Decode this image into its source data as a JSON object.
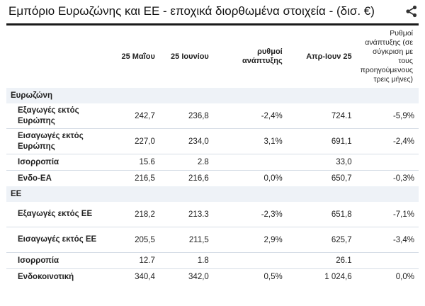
{
  "title": "Εμπόριο Ευρωζώνης και ΕΕ - εποχικά διορθωμένα στοιχεία - (δισ. €)",
  "icons": {
    "share": "share-icon"
  },
  "columns": [
    "",
    "25 Μαΐου",
    "25 Ιουνίου",
    "ρυθμοί ανάπτυξης",
    "Απρ-Ιουν 25",
    "Ρυθμοί ανάπτυξης (σε σύγκριση με τους προηγούμενους τρεις μήνες)"
  ],
  "sections": [
    {
      "name": "Ευρωζώνη",
      "rows": [
        {
          "label": "Εξαγωγές εκτός Ευρώπης",
          "v": [
            "242,7",
            "236,8",
            "-2,4%",
            "724.1",
            "-5,9%"
          ]
        },
        {
          "label": "Εισαγωγές εκτός Ευρώπης",
          "v": [
            "227,0",
            "234,0",
            "3,1%",
            "691,1",
            "-2,4%"
          ]
        },
        {
          "label": "Ισορροπία",
          "v": [
            "15.6",
            "2.8",
            "",
            "33,0",
            ""
          ]
        },
        {
          "label": "Ενδο-ΕΑ",
          "v": [
            "216,5",
            "216,6",
            "0,0%",
            "650,7",
            "-0,3%"
          ]
        }
      ]
    },
    {
      "name": "ΕΕ",
      "rows": [
        {
          "label": "Εξαγωγές εκτός ΕΕ",
          "v": [
            "218,2",
            "213.3",
            "-2,3%",
            "651,8",
            "-7,1%"
          ]
        },
        {
          "label": "Εισαγωγές εκτός ΕΕ",
          "v": [
            "205,5",
            "211,5",
            "2,9%",
            "625,7",
            "-3,4%"
          ]
        },
        {
          "label": "Ισορροπία",
          "v": [
            "12.7",
            "1.8",
            "",
            "26.1",
            ""
          ]
        },
        {
          "label": "Ενδοκοινοτική",
          "v": [
            "340,4",
            "342,0",
            "0,5%",
            "1 024,6",
            "0,0%"
          ]
        }
      ]
    }
  ]
}
